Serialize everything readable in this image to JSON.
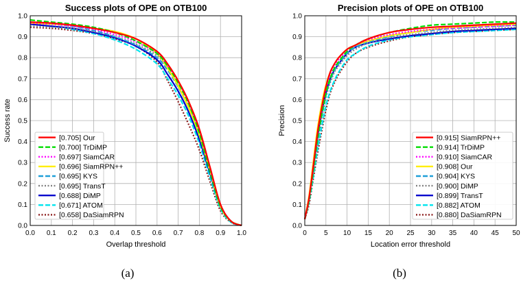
{
  "chart_data": [
    {
      "type": "line",
      "title": "Success plots of OPE on OTB100",
      "xlabel": "Overlap threshold",
      "ylabel": "Success rate",
      "caption": "(a)",
      "xlim": [
        0,
        1
      ],
      "ylim": [
        0,
        1
      ],
      "x_ticks": [
        "0.0",
        "0.1",
        "0.2",
        "0.3",
        "0.4",
        "0.5",
        "0.6",
        "0.7",
        "0.8",
        "0.9",
        "1.0"
      ],
      "y_ticks": [
        "0.0",
        "0.1",
        "0.2",
        "0.3",
        "0.4",
        "0.5",
        "0.6",
        "0.7",
        "0.8",
        "0.9",
        "1.0"
      ],
      "grid": true,
      "legend_position": "lower-left",
      "x": [
        0,
        0.1,
        0.2,
        0.3,
        0.4,
        0.5,
        0.6,
        0.65,
        0.7,
        0.75,
        0.8,
        0.85,
        0.9,
        0.95,
        1.0
      ],
      "series": [
        {
          "name": "[0.705] Our",
          "color": "#ff0000",
          "dash": "solid",
          "values": [
            0.97,
            0.965,
            0.955,
            0.94,
            0.92,
            0.89,
            0.83,
            0.77,
            0.69,
            0.59,
            0.46,
            0.28,
            0.1,
            0.02,
            0.0
          ]
        },
        {
          "name": "[0.700] TrDiMP",
          "color": "#00dd00",
          "dash": "dash",
          "values": [
            0.98,
            0.97,
            0.96,
            0.945,
            0.92,
            0.88,
            0.82,
            0.76,
            0.68,
            0.58,
            0.44,
            0.26,
            0.09,
            0.02,
            0.0
          ]
        },
        {
          "name": "[0.697] SiamCAR",
          "color": "#ff00ff",
          "dash": "dot",
          "values": [
            0.965,
            0.96,
            0.95,
            0.935,
            0.91,
            0.875,
            0.82,
            0.76,
            0.685,
            0.585,
            0.45,
            0.27,
            0.1,
            0.02,
            0.0
          ]
        },
        {
          "name": "[0.696] SiamRPN++",
          "color": "#ffee00",
          "dash": "solid",
          "values": [
            0.965,
            0.96,
            0.955,
            0.94,
            0.925,
            0.89,
            0.82,
            0.75,
            0.665,
            0.56,
            0.43,
            0.26,
            0.09,
            0.02,
            0.0
          ]
        },
        {
          "name": "[0.695] KYS",
          "color": "#1f9fd8",
          "dash": "dash",
          "values": [
            0.97,
            0.96,
            0.95,
            0.93,
            0.9,
            0.86,
            0.8,
            0.74,
            0.66,
            0.56,
            0.43,
            0.26,
            0.09,
            0.02,
            0.0
          ]
        },
        {
          "name": "[0.695] TransT",
          "color": "#808080",
          "dash": "dot",
          "values": [
            0.95,
            0.945,
            0.94,
            0.925,
            0.9,
            0.865,
            0.81,
            0.75,
            0.67,
            0.57,
            0.44,
            0.27,
            0.1,
            0.02,
            0.0
          ]
        },
        {
          "name": "[0.688] DiMP",
          "color": "#0000cc",
          "dash": "solid",
          "values": [
            0.96,
            0.95,
            0.94,
            0.92,
            0.895,
            0.855,
            0.79,
            0.72,
            0.64,
            0.54,
            0.41,
            0.25,
            0.09,
            0.02,
            0.0
          ]
        },
        {
          "name": "[0.671] ATOM",
          "color": "#00e5ee",
          "dash": "dash",
          "values": [
            0.96,
            0.95,
            0.935,
            0.915,
            0.885,
            0.84,
            0.77,
            0.7,
            0.62,
            0.52,
            0.39,
            0.23,
            0.08,
            0.015,
            0.0
          ]
        },
        {
          "name": "[0.658] DaSiamRPN",
          "color": "#8b1a1a",
          "dash": "dot",
          "values": [
            0.945,
            0.94,
            0.93,
            0.915,
            0.89,
            0.855,
            0.78,
            0.69,
            0.59,
            0.48,
            0.36,
            0.21,
            0.07,
            0.015,
            0.0
          ]
        }
      ]
    },
    {
      "type": "line",
      "title": "Precision plots of OPE on OTB100",
      "xlabel": "Location error threshold",
      "ylabel": "Precision",
      "caption": "(b)",
      "xlim": [
        0,
        50
      ],
      "ylim": [
        0,
        1
      ],
      "x_ticks": [
        "0",
        "5",
        "10",
        "15",
        "20",
        "25",
        "30",
        "35",
        "40",
        "45",
        "50"
      ],
      "y_ticks": [
        "0.0",
        "0.1",
        "0.2",
        "0.3",
        "0.4",
        "0.5",
        "0.6",
        "0.7",
        "0.8",
        "0.9",
        "1.0"
      ],
      "grid": true,
      "legend_position": "lower-right",
      "x": [
        0,
        1,
        2,
        3,
        4,
        5,
        6,
        7,
        8,
        10,
        12,
        15,
        20,
        25,
        30,
        35,
        40,
        45,
        50
      ],
      "series": [
        {
          "name": "[0.915] SiamRPN++",
          "color": "#ff0000",
          "dash": "solid",
          "values": [
            0.03,
            0.13,
            0.28,
            0.44,
            0.56,
            0.66,
            0.73,
            0.77,
            0.8,
            0.84,
            0.86,
            0.89,
            0.92,
            0.935,
            0.945,
            0.95,
            0.955,
            0.96,
            0.965
          ]
        },
        {
          "name": "[0.914] TrDiMP",
          "color": "#00dd00",
          "dash": "dash",
          "values": [
            0.03,
            0.12,
            0.26,
            0.41,
            0.53,
            0.63,
            0.7,
            0.75,
            0.78,
            0.83,
            0.86,
            0.89,
            0.92,
            0.94,
            0.955,
            0.96,
            0.965,
            0.97,
            0.97
          ]
        },
        {
          "name": "[0.910] SiamCAR",
          "color": "#ff00ff",
          "dash": "dot",
          "values": [
            0.03,
            0.13,
            0.28,
            0.43,
            0.55,
            0.65,
            0.72,
            0.76,
            0.79,
            0.83,
            0.86,
            0.885,
            0.91,
            0.925,
            0.935,
            0.94,
            0.945,
            0.95,
            0.955
          ]
        },
        {
          "name": "[0.908] Our",
          "color": "#ffee00",
          "dash": "solid",
          "values": [
            0.03,
            0.14,
            0.3,
            0.46,
            0.58,
            0.67,
            0.73,
            0.77,
            0.8,
            0.84,
            0.86,
            0.88,
            0.905,
            0.92,
            0.935,
            0.945,
            0.95,
            0.955,
            0.96
          ]
        },
        {
          "name": "[0.904] KYS",
          "color": "#1f9fd8",
          "dash": "dash",
          "values": [
            0.03,
            0.12,
            0.26,
            0.4,
            0.52,
            0.62,
            0.69,
            0.74,
            0.77,
            0.82,
            0.85,
            0.875,
            0.9,
            0.92,
            0.93,
            0.94,
            0.945,
            0.95,
            0.955
          ]
        },
        {
          "name": "[0.900] DiMP",
          "color": "#808080",
          "dash": "dot",
          "values": [
            0.03,
            0.12,
            0.25,
            0.39,
            0.51,
            0.61,
            0.68,
            0.73,
            0.76,
            0.81,
            0.84,
            0.87,
            0.895,
            0.91,
            0.92,
            0.93,
            0.935,
            0.94,
            0.945
          ]
        },
        {
          "name": "[0.899] TransT",
          "color": "#0000cc",
          "dash": "solid",
          "values": [
            0.03,
            0.13,
            0.27,
            0.42,
            0.54,
            0.63,
            0.7,
            0.74,
            0.77,
            0.82,
            0.85,
            0.87,
            0.89,
            0.905,
            0.915,
            0.925,
            0.93,
            0.935,
            0.94
          ]
        },
        {
          "name": "[0.882] ATOM",
          "color": "#00e5ee",
          "dash": "dash",
          "values": [
            0.03,
            0.11,
            0.23,
            0.36,
            0.47,
            0.57,
            0.64,
            0.69,
            0.73,
            0.79,
            0.82,
            0.855,
            0.885,
            0.9,
            0.91,
            0.92,
            0.925,
            0.93,
            0.935
          ]
        },
        {
          "name": "[0.880] DaSiamRPN",
          "color": "#8b1a1a",
          "dash": "dot",
          "values": [
            0.03,
            0.1,
            0.22,
            0.34,
            0.45,
            0.55,
            0.63,
            0.68,
            0.72,
            0.78,
            0.82,
            0.85,
            0.88,
            0.9,
            0.91,
            0.92,
            0.925,
            0.93,
            0.935
          ]
        }
      ]
    }
  ]
}
